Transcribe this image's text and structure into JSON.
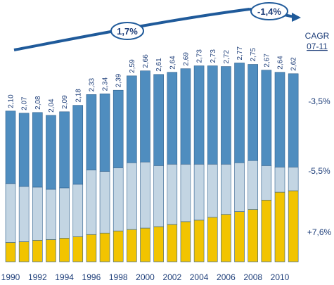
{
  "chart_data": {
    "type": "bar",
    "stacked": true,
    "categories": [
      "1990",
      "1991",
      "1992",
      "1993",
      "1994",
      "1995",
      "1996",
      "1997",
      "1998",
      "1999",
      "2000",
      "2001",
      "2002",
      "2003",
      "2004",
      "2005",
      "2006",
      "2007",
      "2008",
      "2009",
      "2010",
      "2011"
    ],
    "x_tick_labels": [
      "1990",
      "1992",
      "1994",
      "1996",
      "1998",
      "2000",
      "2002",
      "2004",
      "2006",
      "2008",
      "2010"
    ],
    "total_labels": [
      "2,10",
      "2,07",
      "2,08",
      "2,04",
      "2,09",
      "2,18",
      "2,33",
      "2,34",
      "2,39",
      "2,59",
      "2,66",
      "2,61",
      "2,64",
      "2,69",
      "2,73",
      "2,73",
      "2,72",
      "2,77",
      "2,75",
      "2,67",
      "2,64",
      "2,62"
    ],
    "totals": [
      2.1,
      2.07,
      2.08,
      2.04,
      2.09,
      2.18,
      2.33,
      2.34,
      2.39,
      2.59,
      2.66,
      2.61,
      2.64,
      2.69,
      2.73,
      2.73,
      2.72,
      2.77,
      2.75,
      2.67,
      2.64,
      2.62
    ],
    "series": [
      {
        "values": [
          0.27,
          0.28,
          0.3,
          0.31,
          0.33,
          0.35,
          0.38,
          0.4,
          0.43,
          0.45,
          0.47,
          0.49,
          0.52,
          0.56,
          0.58,
          0.62,
          0.66,
          0.7,
          0.73,
          0.86,
          0.97,
          0.99
        ],
        "color": "#f2c400"
      },
      {
        "values": [
          0.82,
          0.77,
          0.74,
          0.7,
          0.7,
          0.73,
          0.9,
          0.86,
          0.88,
          0.93,
          0.92,
          0.85,
          0.84,
          0.8,
          0.78,
          0.74,
          0.7,
          0.68,
          0.68,
          0.48,
          0.35,
          0.33
        ],
        "color": "#c3d5e3"
      },
      {
        "values": [
          1.01,
          1.02,
          1.04,
          1.03,
          1.06,
          1.1,
          1.05,
          1.08,
          1.08,
          1.21,
          1.27,
          1.27,
          1.28,
          1.33,
          1.37,
          1.37,
          1.36,
          1.39,
          1.34,
          1.33,
          1.32,
          1.3
        ],
        "color": "#4f8dbf"
      }
    ],
    "ylim": [
      0,
      2.9
    ],
    "cagr_header": [
      "CAGR",
      "07-11"
    ],
    "cagr_labels": [
      "-3,5%",
      "-5,5%",
      "+7,6%"
    ],
    "trend_labels": [
      "1,7%",
      "-1,4%"
    ],
    "colors": {
      "text": "#1f3f7a",
      "arrow": "#1f5a9a",
      "bar_edge": "#2f5f8c"
    }
  }
}
